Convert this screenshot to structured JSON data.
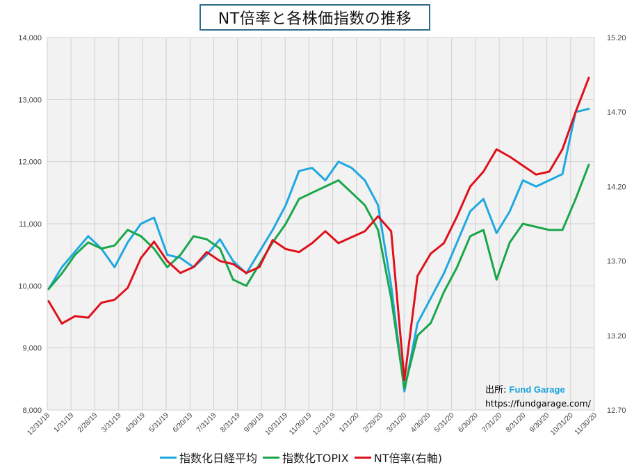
{
  "title": "NT倍率と各株価指数の推移",
  "source": {
    "label": "出所:",
    "brand": "Fund Garage",
    "url": "https://fundgarage.com/"
  },
  "chart_data": {
    "type": "line",
    "title": "NT倍率と各株価指数の推移",
    "x_tick_labels": [
      "12/31/18",
      "1/31/19",
      "2/28/19",
      "3/31/19",
      "4/30/19",
      "5/31/19",
      "6/30/19",
      "7/31/19",
      "8/31/19",
      "9/30/19",
      "10/31/19",
      "11/30/19",
      "12/31/19",
      "1/31/20",
      "2/29/20",
      "3/31/20",
      "4/30/20",
      "5/31/20",
      "6/30/20",
      "7/31/20",
      "8/31/20",
      "9/30/20",
      "10/31/20",
      "11/30/20"
    ],
    "y_left": {
      "min": 8000,
      "max": 14000,
      "ticks": [
        "8,000",
        "9,000",
        "10,000",
        "11,000",
        "12,000",
        "13,000",
        "14,000"
      ]
    },
    "y_right": {
      "min": 12.7,
      "max": 15.2,
      "ticks": [
        "12.70",
        "13.20",
        "13.70",
        "14.20",
        "14.70",
        "15.20"
      ]
    },
    "grid": true,
    "legend_position": "bottom",
    "series": [
      {
        "name": "指数化日経平均",
        "axis": "left",
        "color": "#1fa8e0",
        "values": [
          9950,
          10300,
          10550,
          10800,
          10600,
          10300,
          10700,
          11000,
          11100,
          10500,
          10450,
          10300,
          10500,
          10750,
          10400,
          10200,
          10550,
          10900,
          11300,
          11850,
          11900,
          11700,
          12000,
          11900,
          11700,
          11300,
          10000,
          8300,
          9400,
          9800,
          10200,
          10700,
          11200,
          11400,
          10850,
          11200,
          11700,
          11600,
          11700,
          11800,
          12800,
          12850
        ]
      },
      {
        "name": "指数化TOPIX",
        "axis": "left",
        "color": "#1aa64a",
        "values": [
          9950,
          10200,
          10500,
          10700,
          10600,
          10650,
          10900,
          10800,
          10600,
          10300,
          10500,
          10800,
          10750,
          10600,
          10100,
          10000,
          10350,
          10700,
          11000,
          11400,
          11500,
          11600,
          11700,
          11500,
          11300,
          10900,
          9800,
          8350,
          9200,
          9400,
          9900,
          10300,
          10800,
          10900,
          10100,
          10700,
          11000,
          10950,
          10900,
          10900,
          11400,
          11950
        ]
      },
      {
        "name": "NT倍率(右軸)",
        "axis": "right",
        "color": "#e0101a",
        "values": [
          13.43,
          13.28,
          13.33,
          13.32,
          13.42,
          13.44,
          13.52,
          13.72,
          13.83,
          13.7,
          13.62,
          13.66,
          13.76,
          13.7,
          13.68,
          13.62,
          13.66,
          13.84,
          13.78,
          13.76,
          13.82,
          13.9,
          13.82,
          13.86,
          13.9,
          14.0,
          13.9,
          12.9,
          13.6,
          13.75,
          13.82,
          14.0,
          14.2,
          14.3,
          14.45,
          14.4,
          14.34,
          14.28,
          14.3,
          14.45,
          14.7,
          14.93
        ]
      }
    ]
  },
  "colors": {
    "plot_bg": "#f2f2f2",
    "grid": "#d0d0d0",
    "title_border": "#2e6b88"
  }
}
